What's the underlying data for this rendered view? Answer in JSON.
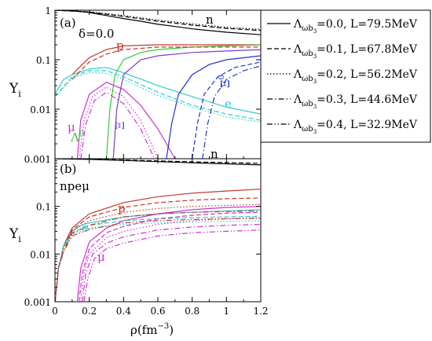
{
  "figure": {
    "shared_xlabel": "ρ(fm",
    "shared_xlabel_exp": "−3",
    "shared_xlabel_close": ")",
    "ylabel_main": "Y",
    "ylabel_sub": "i"
  },
  "legend": {
    "symbol": "Λ",
    "sub1": "ωb",
    "sub2": "3",
    "entries": [
      {
        "value": "=0.0",
        "L": ", L=79.5MeV",
        "style": "solid"
      },
      {
        "value": "=0.1",
        "L": ", L=67.8MeV",
        "style": "dashed"
      },
      {
        "value": "=0.2",
        "L": ", L=56.2MeV",
        "style": "dotted"
      },
      {
        "value": "=0.3",
        "L": ", L=44.6MeV",
        "style": "dashdot"
      },
      {
        "value": "=0.4",
        "L": ", L=32.9MeV",
        "style": "dashdotdot"
      }
    ]
  },
  "colors": {
    "n": "#000000",
    "p": "#c0392b",
    "e": "#33cccc",
    "mu": "#cc33cc",
    "lambda": "#33cc33",
    "xi_minus": "#7d3cc8",
    "xi_zero": "#2233cc"
  },
  "chart_data": [
    {
      "type": "line",
      "panel_label": "(a)",
      "annotation": "δ=0.0",
      "yscale": "log",
      "xlim": [
        0,
        1.2
      ],
      "ylim": [
        0.001,
        1
      ],
      "x_ticks": [
        "0",
        "0.2",
        "0.4",
        "0.6",
        "0.8",
        "1",
        "1.2"
      ],
      "y_ticks": [
        "0.001",
        "0.01",
        "0.1",
        "1"
      ],
      "curve_labels": [
        {
          "text": "n",
          "color": "n"
        },
        {
          "text": "p",
          "color": "p"
        },
        {
          "text": "e",
          "color": "e"
        },
        {
          "text": "μ",
          "color": "mu"
        },
        {
          "text": "Λ",
          "sup": "0",
          "color": "lambda"
        },
        {
          "text": "Ξ",
          "sup": "−",
          "color": "xi_minus"
        },
        {
          "text": "Ξ",
          "sup": "0",
          "color": "xi_zero"
        },
        {
          "text": "n",
          "color": "n"
        }
      ],
      "series": [
        {
          "name": "n",
          "color": "n",
          "style": "solid",
          "x": [
            0.0,
            0.1,
            0.2,
            0.3,
            0.4,
            0.5,
            0.6,
            0.7,
            0.8,
            1.0,
            1.2
          ],
          "y": [
            1.0,
            0.98,
            0.9,
            0.78,
            0.68,
            0.6,
            0.52,
            0.47,
            0.42,
            0.36,
            0.32
          ]
        },
        {
          "name": "p",
          "color": "p",
          "style": "solid",
          "x": [
            0.1,
            0.15,
            0.2,
            0.3,
            0.4,
            0.6,
            0.8,
            1.0,
            1.2
          ],
          "y": [
            0.05,
            0.075,
            0.11,
            0.16,
            0.19,
            0.2,
            0.2,
            0.2,
            0.2
          ]
        },
        {
          "name": "e",
          "color": "e",
          "style": "solid",
          "x": [
            0.0,
            0.05,
            0.1,
            0.2,
            0.3,
            0.4,
            0.6,
            0.8,
            1.0,
            1.2
          ],
          "y": [
            0.02,
            0.04,
            0.05,
            0.065,
            0.07,
            0.055,
            0.03,
            0.018,
            0.011,
            0.008
          ]
        },
        {
          "name": "mu",
          "color": "mu",
          "style": "solid",
          "x": [
            0.13,
            0.15,
            0.2,
            0.3,
            0.4,
            0.5,
            0.6,
            0.7
          ],
          "y": [
            0.001,
            0.006,
            0.02,
            0.035,
            0.025,
            0.012,
            0.004,
            0.001
          ]
        },
        {
          "name": "lambda",
          "color": "lambda",
          "style": "solid",
          "x": [
            0.3,
            0.32,
            0.35,
            0.4,
            0.5,
            0.6,
            0.8,
            1.0,
            1.2
          ],
          "y": [
            0.001,
            0.01,
            0.05,
            0.1,
            0.14,
            0.16,
            0.18,
            0.19,
            0.2
          ]
        },
        {
          "name": "xi_minus",
          "color": "xi_minus",
          "style": "solid",
          "x": [
            0.34,
            0.36,
            0.4,
            0.5,
            0.6,
            0.8,
            1.0,
            1.2
          ],
          "y": [
            0.001,
            0.01,
            0.05,
            0.1,
            0.12,
            0.14,
            0.15,
            0.16
          ]
        },
        {
          "name": "xi_zero",
          "color": "xi_zero",
          "style": "solid",
          "x": [
            0.65,
            0.68,
            0.72,
            0.8,
            0.9,
            1.0,
            1.2
          ],
          "y": [
            0.001,
            0.005,
            0.02,
            0.05,
            0.08,
            0.1,
            0.12
          ]
        },
        {
          "name": "n",
          "color": "n",
          "style": "dashed",
          "x": [
            0.0,
            0.2,
            0.4,
            0.6,
            0.8,
            1.0,
            1.2
          ],
          "y": [
            1.0,
            0.92,
            0.75,
            0.6,
            0.5,
            0.43,
            0.39
          ]
        },
        {
          "name": "p",
          "color": "p",
          "style": "dashed",
          "x": [
            0.1,
            0.2,
            0.3,
            0.4,
            0.6,
            0.8,
            1.2
          ],
          "y": [
            0.04,
            0.09,
            0.13,
            0.16,
            0.18,
            0.18,
            0.18
          ]
        },
        {
          "name": "e",
          "color": "e",
          "style": "dashed",
          "x": [
            0.0,
            0.1,
            0.2,
            0.3,
            0.4,
            0.6,
            0.8,
            1.0,
            1.2
          ],
          "y": [
            0.018,
            0.045,
            0.06,
            0.06,
            0.045,
            0.022,
            0.012,
            0.008,
            0.006
          ]
        },
        {
          "name": "xi_zero",
          "color": "xi_zero",
          "style": "dashed",
          "x": [
            0.8,
            0.83,
            0.87,
            0.95,
            1.05,
            1.2
          ],
          "y": [
            0.001,
            0.005,
            0.02,
            0.045,
            0.07,
            0.09
          ]
        },
        {
          "name": "mu",
          "color": "mu",
          "style": "dotted",
          "x": [
            0.14,
            0.17,
            0.22,
            0.3,
            0.4,
            0.5,
            0.6
          ],
          "y": [
            0.001,
            0.006,
            0.018,
            0.028,
            0.018,
            0.006,
            0.001
          ]
        },
        {
          "name": "e",
          "color": "e",
          "style": "dotted",
          "x": [
            0.0,
            0.1,
            0.2,
            0.3,
            0.4,
            0.6,
            0.8,
            1.0,
            1.2
          ],
          "y": [
            0.017,
            0.042,
            0.055,
            0.053,
            0.04,
            0.019,
            0.011,
            0.007,
            0.0055
          ]
        },
        {
          "name": "n",
          "color": "n",
          "style": "dotted",
          "x": [
            0.0,
            0.2,
            0.4,
            0.6,
            0.8,
            1.0,
            1.2
          ],
          "y": [
            1.0,
            0.93,
            0.78,
            0.63,
            0.53,
            0.45,
            0.41
          ]
        },
        {
          "name": "xi_zero",
          "color": "xi_zero",
          "style": "dashdot",
          "x": [
            0.86,
            0.89,
            0.93,
            1.0,
            1.1,
            1.2
          ],
          "y": [
            0.001,
            0.005,
            0.018,
            0.04,
            0.06,
            0.075
          ]
        },
        {
          "name": "mu",
          "color": "mu",
          "style": "dashdot",
          "x": [
            0.15,
            0.18,
            0.23,
            0.3,
            0.4,
            0.5,
            0.58
          ],
          "y": [
            0.001,
            0.005,
            0.015,
            0.022,
            0.013,
            0.004,
            0.001
          ]
        }
      ]
    },
    {
      "type": "line",
      "panel_label": "(b)",
      "annotation": "npeμ",
      "yscale": "log",
      "xlim": [
        0,
        1.2
      ],
      "ylim": [
        0.001,
        1
      ],
      "x_ticks": [
        "0",
        "0.2",
        "0.4",
        "0.6",
        "0.8",
        "1",
        "1.2"
      ],
      "y_ticks": [
        "0.001",
        "0.01",
        "0.1",
        "1"
      ],
      "curve_labels": [
        {
          "text": "p",
          "color": "p"
        },
        {
          "text": "e",
          "color": "e"
        },
        {
          "text": "μ",
          "color": "mu"
        }
      ],
      "series": [
        {
          "name": "n",
          "color": "n",
          "style": "solid",
          "x": [
            0.0,
            0.2,
            0.4,
            0.6,
            0.8,
            1.0,
            1.2
          ],
          "y": [
            1.0,
            0.97,
            0.92,
            0.87,
            0.82,
            0.78,
            0.74
          ]
        },
        {
          "name": "p",
          "color": "p",
          "style": "solid",
          "x": [
            0.001,
            0.02,
            0.05,
            0.1,
            0.2,
            0.4,
            0.6,
            0.8,
            1.0,
            1.2
          ],
          "y": [
            0.001,
            0.005,
            0.015,
            0.035,
            0.07,
            0.12,
            0.16,
            0.19,
            0.21,
            0.23
          ]
        },
        {
          "name": "e",
          "color": "e",
          "style": "solid",
          "x": [
            0.001,
            0.02,
            0.05,
            0.1,
            0.15,
            0.2,
            0.4,
            0.6,
            0.8,
            1.0,
            1.2
          ],
          "y": [
            0.001,
            0.005,
            0.015,
            0.03,
            0.04,
            0.045,
            0.06,
            0.07,
            0.075,
            0.08,
            0.085
          ]
        },
        {
          "name": "mu",
          "color": "mu",
          "style": "solid",
          "x": [
            0.13,
            0.15,
            0.2,
            0.3,
            0.4,
            0.6,
            0.8,
            1.0,
            1.2
          ],
          "y": [
            0.001,
            0.005,
            0.018,
            0.035,
            0.05,
            0.07,
            0.085,
            0.095,
            0.1
          ]
        },
        {
          "name": "n",
          "color": "n",
          "style": "dashed",
          "x": [
            0.0,
            0.2,
            0.4,
            0.6,
            0.8,
            1.0,
            1.2
          ],
          "y": [
            1.0,
            0.975,
            0.94,
            0.9,
            0.86,
            0.83,
            0.8
          ]
        },
        {
          "name": "p",
          "color": "p",
          "style": "dashed",
          "x": [
            0.001,
            0.02,
            0.05,
            0.1,
            0.2,
            0.4,
            0.6,
            0.8,
            1.0,
            1.2
          ],
          "y": [
            0.001,
            0.005,
            0.014,
            0.032,
            0.06,
            0.095,
            0.12,
            0.135,
            0.145,
            0.15
          ]
        },
        {
          "name": "e",
          "color": "e",
          "style": "dashed",
          "x": [
            0.001,
            0.02,
            0.05,
            0.1,
            0.2,
            0.4,
            0.6,
            0.8,
            1.0,
            1.2
          ],
          "y": [
            0.001,
            0.005,
            0.014,
            0.028,
            0.04,
            0.05,
            0.055,
            0.058,
            0.06,
            0.062
          ]
        },
        {
          "name": "mu",
          "color": "mu",
          "style": "dashed",
          "x": [
            0.14,
            0.16,
            0.2,
            0.3,
            0.4,
            0.6,
            0.8,
            1.0,
            1.2
          ],
          "y": [
            0.001,
            0.004,
            0.013,
            0.028,
            0.038,
            0.055,
            0.065,
            0.072,
            0.075
          ]
        },
        {
          "name": "p",
          "color": "p",
          "style": "dotted",
          "x": [
            0.001,
            0.02,
            0.05,
            0.1,
            0.2,
            0.4,
            0.6,
            0.8,
            1.0,
            1.2
          ],
          "y": [
            0.001,
            0.005,
            0.013,
            0.03,
            0.05,
            0.075,
            0.09,
            0.1,
            0.105,
            0.11
          ]
        },
        {
          "name": "e",
          "color": "e",
          "style": "dotted",
          "x": [
            0.001,
            0.02,
            0.05,
            0.1,
            0.2,
            0.4,
            0.6,
            0.8,
            1.0,
            1.2
          ],
          "y": [
            0.001,
            0.005,
            0.013,
            0.026,
            0.035,
            0.042,
            0.045,
            0.047,
            0.048,
            0.05
          ]
        },
        {
          "name": "mu",
          "color": "mu",
          "style": "dotted",
          "x": [
            0.15,
            0.17,
            0.2,
            0.3,
            0.4,
            0.6,
            0.8,
            1.0,
            1.2
          ],
          "y": [
            0.001,
            0.004,
            0.01,
            0.022,
            0.03,
            0.042,
            0.05,
            0.055,
            0.058
          ]
        },
        {
          "name": "p",
          "color": "p",
          "style": "dashdot",
          "x": [
            0.001,
            0.02,
            0.05,
            0.1,
            0.2,
            0.4,
            0.6,
            0.8,
            1.0,
            1.2
          ],
          "y": [
            0.001,
            0.005,
            0.012,
            0.027,
            0.04,
            0.06,
            0.07,
            0.075,
            0.078,
            0.08
          ]
        },
        {
          "name": "mu",
          "color": "mu",
          "style": "dashdot",
          "x": [
            0.16,
            0.18,
            0.22,
            0.3,
            0.4,
            0.6,
            0.8,
            1.0,
            1.2
          ],
          "y": [
            0.001,
            0.004,
            0.01,
            0.017,
            0.023,
            0.032,
            0.037,
            0.04,
            0.042
          ]
        },
        {
          "name": "p",
          "color": "p",
          "style": "dashdotdot",
          "x": [
            0.001,
            0.02,
            0.05,
            0.1,
            0.2,
            0.4,
            0.6,
            0.8,
            1.0,
            1.2
          ],
          "y": [
            0.001,
            0.005,
            0.011,
            0.024,
            0.033,
            0.045,
            0.05,
            0.053,
            0.055,
            0.056
          ]
        },
        {
          "name": "mu",
          "color": "mu",
          "style": "dashdotdot",
          "x": [
            0.17,
            0.19,
            0.23,
            0.3,
            0.4,
            0.6,
            0.8,
            1.0,
            1.2
          ],
          "y": [
            0.001,
            0.003,
            0.008,
            0.013,
            0.017,
            0.024,
            0.028,
            0.03,
            0.032
          ]
        }
      ]
    }
  ]
}
